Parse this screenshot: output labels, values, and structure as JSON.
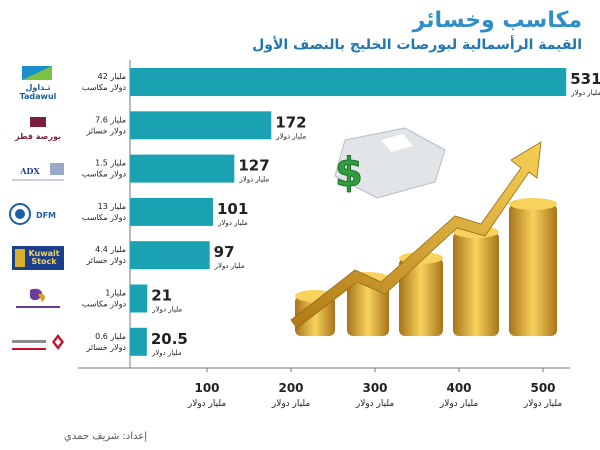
{
  "title": "مكاسب وخسائر",
  "subtitle": "القيمة الرأسمالية لبورصات الخليج بالنصف الأول",
  "credit": "إعداد: شريف حمدي",
  "colors": {
    "bar": "#1aa2b2",
    "title": "#2e8fc7",
    "axis": "#777777",
    "text": "#222222"
  },
  "chart_data": {
    "type": "bar",
    "orientation": "horizontal",
    "categories": [
      "Tadawul",
      "بورصة قطر",
      "ADX",
      "DFM",
      "Kuwait Stock Exchange",
      "Muscat Securities Market",
      "BAHRAIN BOURSE"
    ],
    "values": [
      531,
      172,
      127,
      101,
      97,
      21,
      20.5
    ],
    "value_unit": "مليار دولار",
    "change_amounts": [
      "42 مليار",
      "7.6 مليار",
      "1.5 مليار",
      "13 مليار",
      "4.4 مليار",
      "1مليار",
      "0.6 مليار"
    ],
    "change_types": [
      "دولار مكاسب",
      "دولار خسائر",
      "دولار مكاسب",
      "دولار مكاسب",
      "دولار خسائر",
      "دولار مكاسب",
      "دولار خسائر"
    ],
    "x_ticks": [
      100,
      200,
      300,
      400,
      500
    ],
    "x_tick_unit": "مليار دولار",
    "xlim": [
      0,
      531
    ],
    "grid": false
  }
}
